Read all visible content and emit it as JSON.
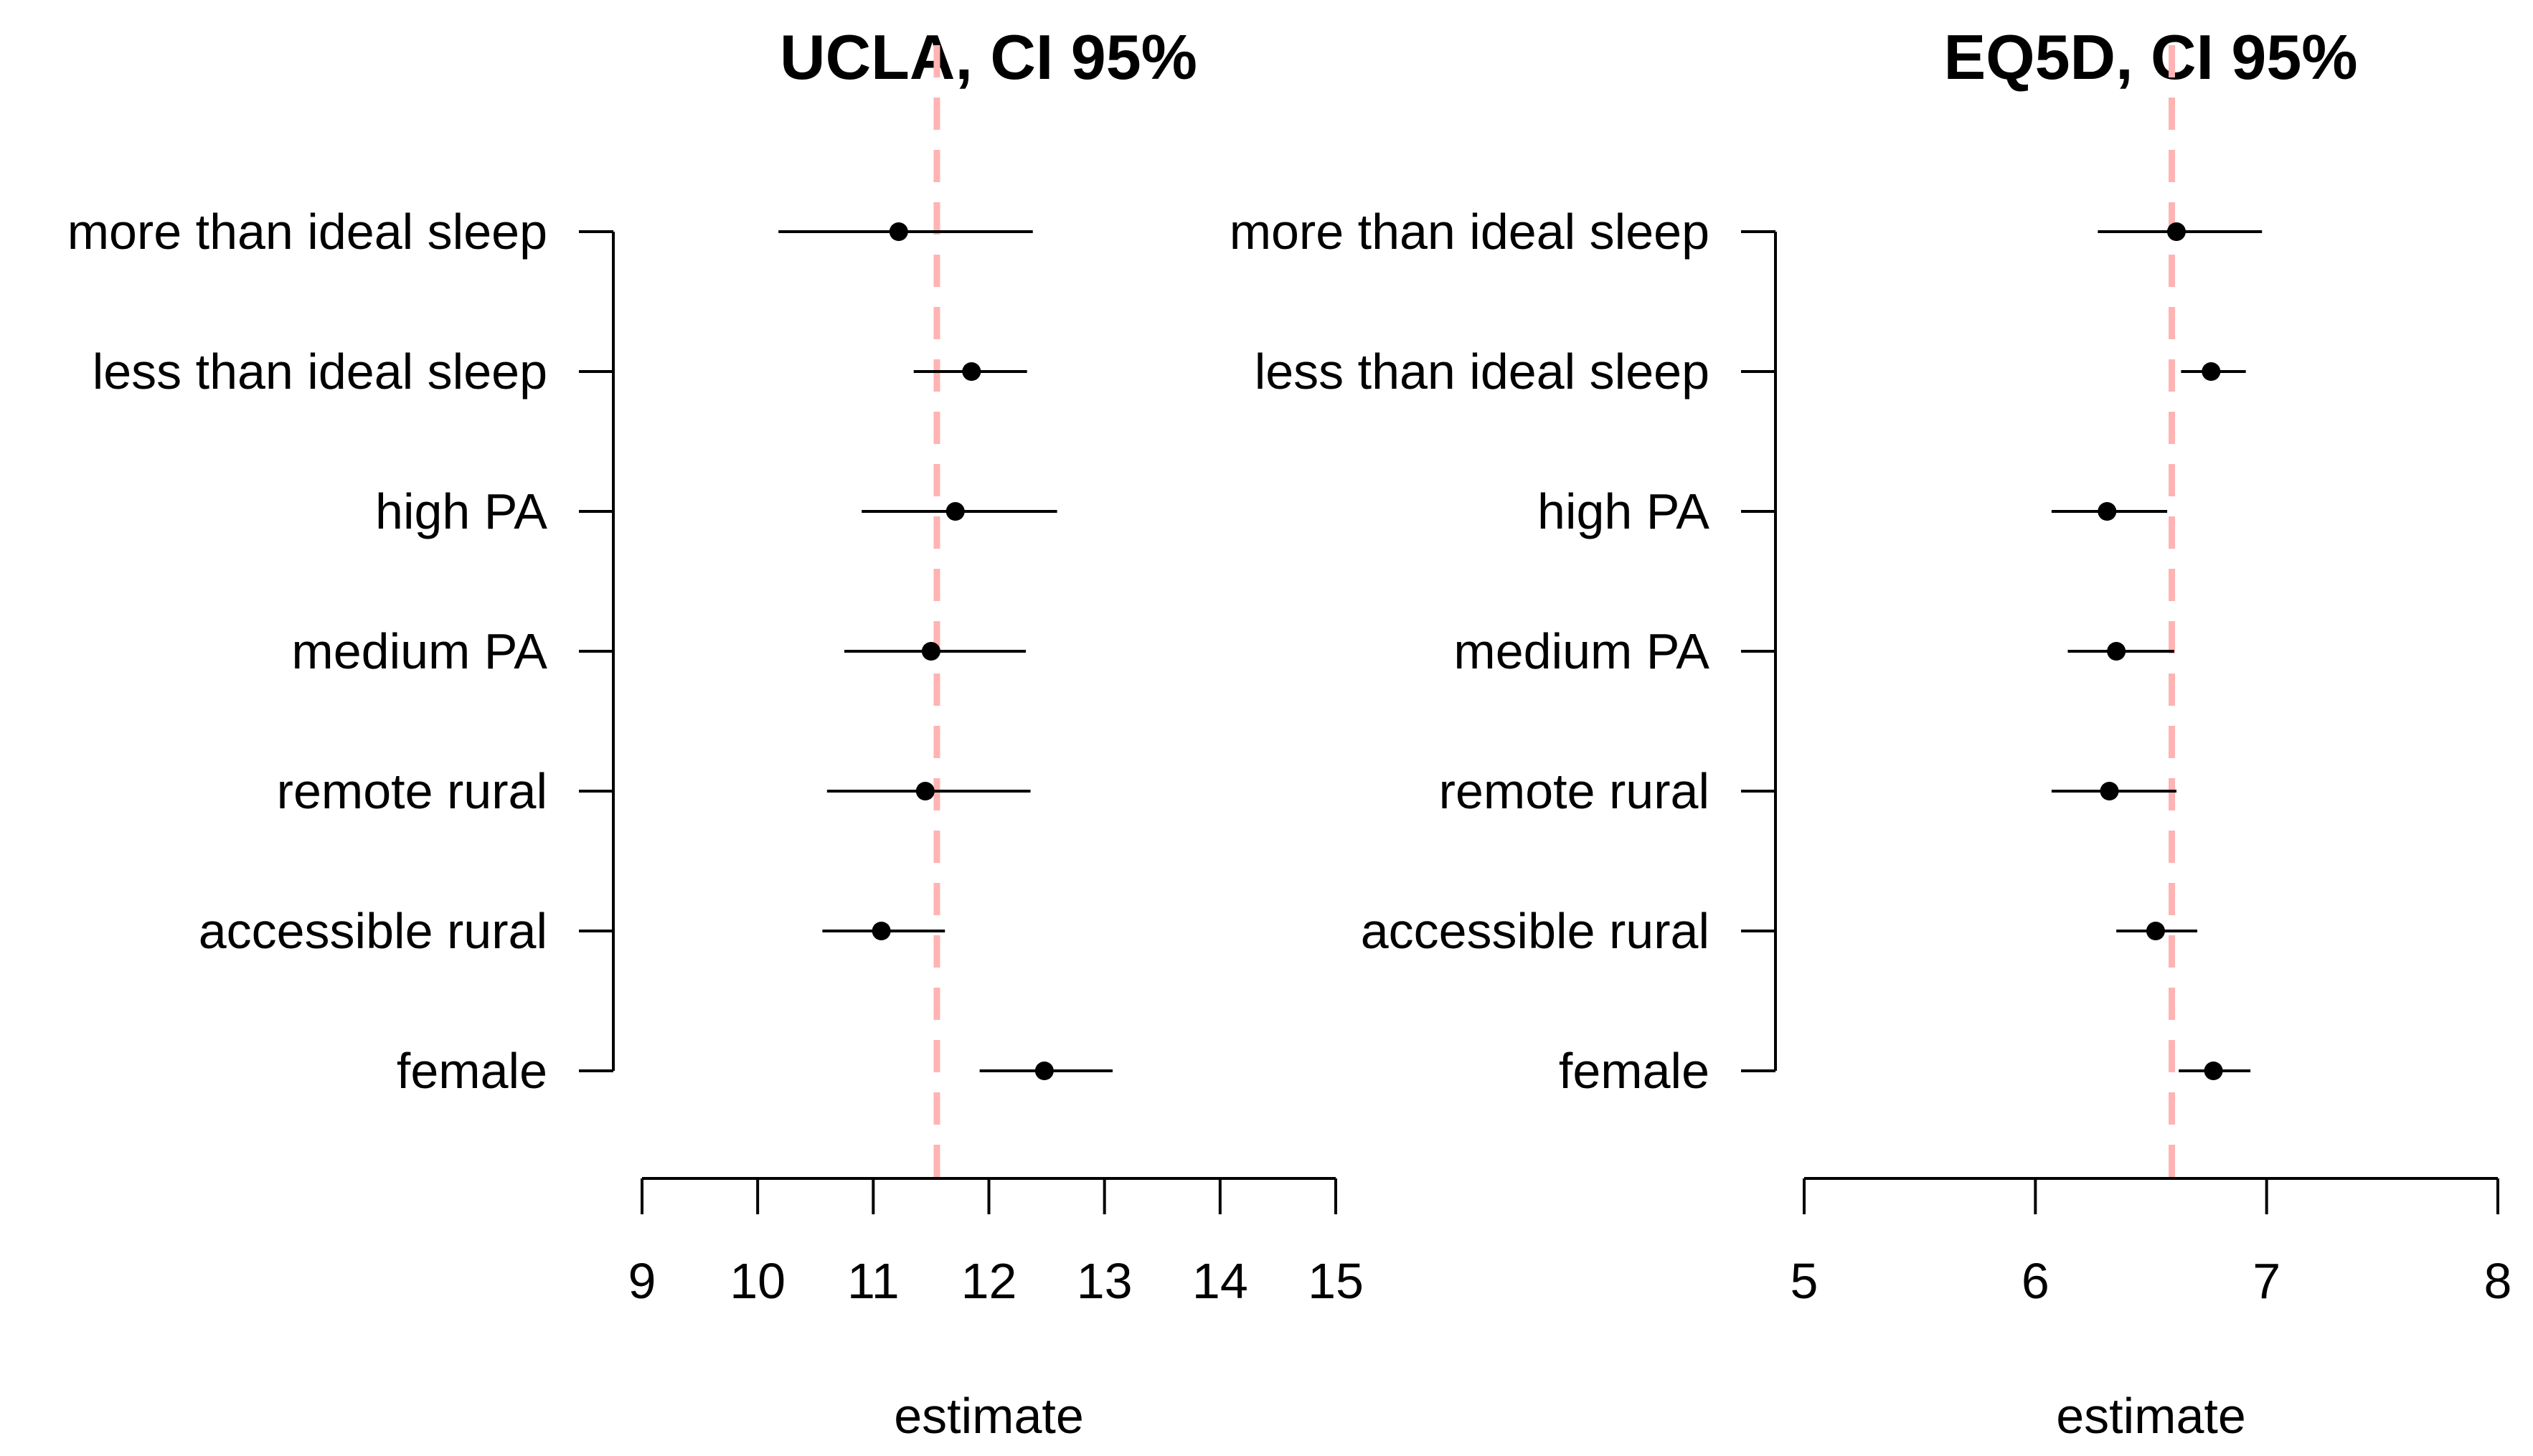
{
  "colors": {
    "reference_line": "#ffb3b3",
    "marks": "#000000",
    "background": "#ffffff"
  },
  "chart_data": [
    {
      "type": "forest",
      "title": "UCLA, CI 95%",
      "xlabel": "estimate",
      "xlim": [
        9,
        15
      ],
      "xticks": [
        9,
        10,
        11,
        12,
        13,
        14,
        15
      ],
      "reference_line": 11.55,
      "categories": [
        "more than ideal sleep",
        "less than ideal sleep",
        "high PA",
        "medium PA",
        "remote rural",
        "accessible rural",
        "female"
      ],
      "estimates": [
        11.22,
        11.85,
        11.71,
        11.5,
        11.45,
        11.07,
        12.48
      ],
      "ci_lower": [
        10.18,
        11.35,
        10.9,
        10.75,
        10.6,
        10.56,
        11.92
      ],
      "ci_upper": [
        12.38,
        12.33,
        12.59,
        12.32,
        12.36,
        11.62,
        13.07
      ]
    },
    {
      "type": "forest",
      "title": "EQ5D, CI 95%",
      "xlabel": "estimate",
      "xlim": [
        5,
        8
      ],
      "xticks": [
        5,
        6,
        7,
        8
      ],
      "reference_line": 6.59,
      "categories": [
        "more than ideal sleep",
        "less than ideal sleep",
        "high PA",
        "medium PA",
        "remote rural",
        "accessible rural",
        "female"
      ],
      "estimates": [
        6.61,
        6.76,
        6.31,
        6.35,
        6.32,
        6.52,
        6.77
      ],
      "ci_lower": [
        6.27,
        6.63,
        6.07,
        6.14,
        6.07,
        6.35,
        6.62
      ],
      "ci_upper": [
        6.98,
        6.91,
        6.57,
        6.6,
        6.61,
        6.7,
        6.93
      ]
    }
  ]
}
